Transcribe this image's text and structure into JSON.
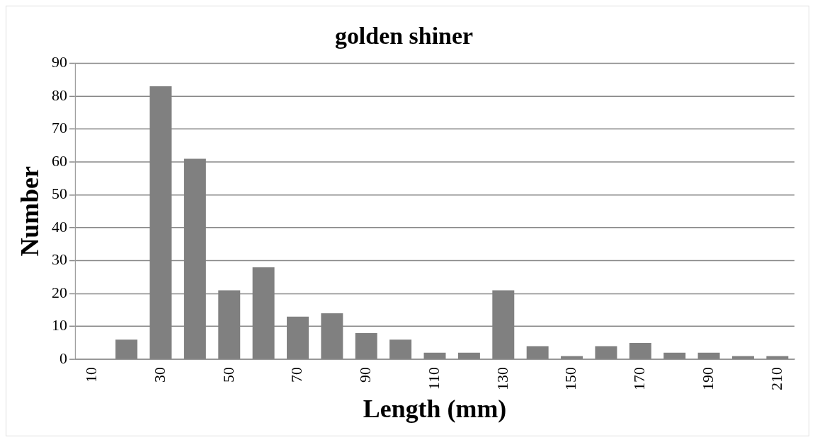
{
  "chart_data": {
    "type": "bar",
    "title": "golden shiner",
    "xlabel": "Length (mm)",
    "ylabel": "Number",
    "categories": [
      "10",
      null,
      "30",
      null,
      "50",
      null,
      "70",
      null,
      "90",
      null,
      "110",
      null,
      "130",
      null,
      "150",
      null,
      "170",
      null,
      "190",
      null,
      "210"
    ],
    "values": [
      0,
      6,
      83,
      61,
      21,
      28,
      13,
      14,
      8,
      6,
      2,
      2,
      21,
      4,
      1,
      4,
      5,
      2,
      2,
      1,
      1
    ],
    "color": "#808080",
    "ylim": [
      0,
      90
    ],
    "yticks": [
      0,
      10,
      20,
      30,
      40,
      50,
      60,
      70,
      80,
      90
    ],
    "grid": "y"
  }
}
